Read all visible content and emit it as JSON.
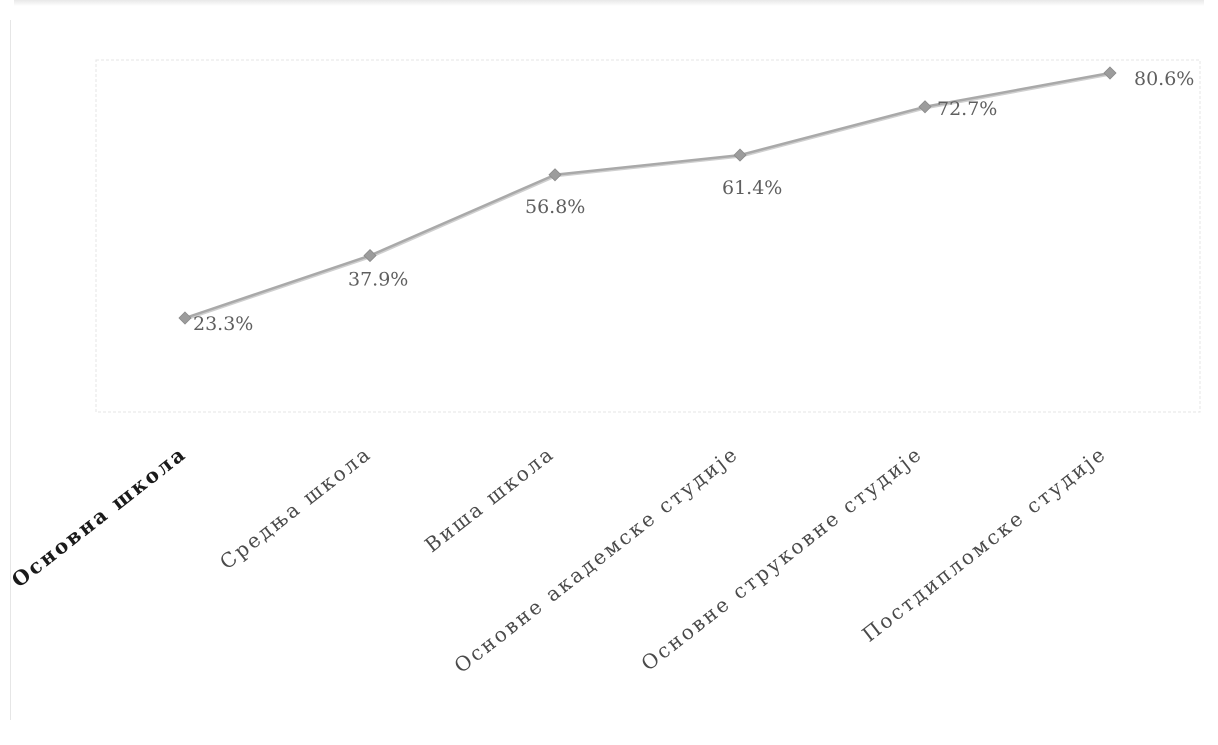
{
  "chart_data": {
    "type": "line",
    "categories": [
      "Основна школа",
      "Средња школа",
      "Виша школа",
      "Основне академске студије",
      "Основне струковне студије",
      "Постдипломске студије"
    ],
    "series": [
      {
        "values": [
          23.3,
          37.9,
          56.8,
          61.4,
          72.7,
          80.6
        ],
        "labels": [
          "23.3%",
          "37.9%",
          "56.8%",
          "61.4%",
          "72.7%",
          "80.6%"
        ]
      }
    ],
    "ylim": [
      0,
      100
    ],
    "grid": false,
    "legend": "none",
    "colors": {
      "line": "#a9a9a9",
      "marker": "#9c9c9c",
      "label": "#5f5f5f",
      "axis_label": "#4a4a4a",
      "first_axis_label": "#1a1a1a",
      "plot_border": "#e4e4e4"
    }
  }
}
